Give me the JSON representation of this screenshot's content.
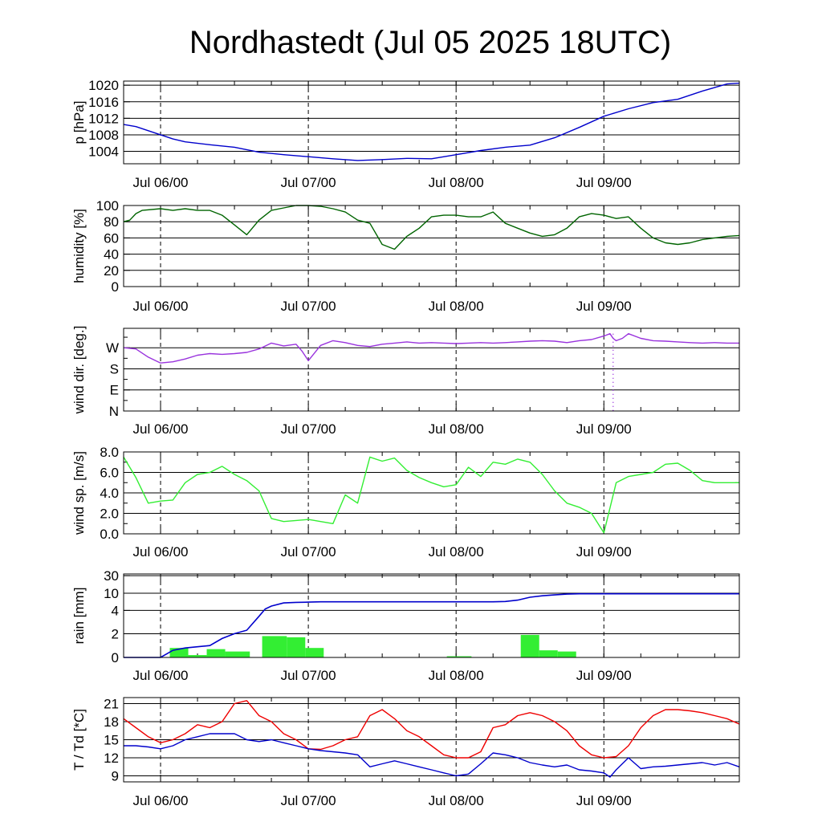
{
  "title": "Nordhastedt (Jul 05 2025 18UTC)",
  "colors": {
    "pressure": "#0000cc",
    "humidity": "#006400",
    "wind_dir": "#9933dd",
    "wind_speed": "#33ee33",
    "rain_bar": "#33ee33",
    "rain_cum": "#0000cc",
    "temperature": "#ee0000",
    "dewpoint": "#0000cc"
  },
  "chart_data": [
    {
      "type": "line",
      "id": "pressure",
      "ylabel": "p [hPa]",
      "x_unit": "hours since Jul 05 18UTC",
      "xlim": [
        0,
        100
      ],
      "x_ticks": [
        "Jul 06/00",
        "Jul 07/00",
        "Jul 08/00",
        "Jul 09/00"
      ],
      "ylim": [
        1001,
        1021
      ],
      "y_ticks": [
        1004,
        1008,
        1012,
        1016,
        1020
      ],
      "series": [
        {
          "x": [
            0,
            2,
            4,
            6,
            8,
            10,
            14,
            18,
            22,
            26,
            30,
            34,
            38,
            42,
            46,
            50,
            54,
            58,
            62,
            66,
            70,
            74,
            78,
            82,
            86,
            90,
            94,
            98,
            100
          ],
          "y": [
            1010.5,
            1010,
            1009,
            1008,
            1007,
            1006.3,
            1005.6,
            1005,
            1003.8,
            1003.2,
            1002.7,
            1002.2,
            1001.8,
            1002,
            1002.3,
            1002.2,
            1003.2,
            1004.2,
            1005,
            1005.5,
            1007.3,
            1009.8,
            1012.5,
            1014.3,
            1015.8,
            1016.6,
            1018.6,
            1020.3,
            1020.5
          ]
        }
      ]
    },
    {
      "type": "line",
      "id": "humidity",
      "ylabel": "humidity [%]",
      "x_unit": "hours since Jul 05 18UTC",
      "xlim": [
        0,
        100
      ],
      "x_ticks": [
        "Jul 06/00",
        "Jul 07/00",
        "Jul 08/00",
        "Jul 09/00"
      ],
      "ylim": [
        0,
        100
      ],
      "y_ticks": [
        0,
        20,
        40,
        60,
        80,
        100
      ],
      "series": [
        {
          "x": [
            0,
            1,
            2,
            3,
            6,
            8,
            10,
            12,
            14,
            16,
            18,
            20,
            22,
            24,
            26,
            28,
            30,
            32,
            34,
            36,
            38,
            40,
            42,
            44,
            46,
            48,
            50,
            52,
            54,
            56,
            58,
            60,
            62,
            64,
            66,
            68,
            70,
            72,
            74,
            76,
            78,
            80,
            82,
            84,
            86,
            88,
            90,
            92,
            94,
            96,
            98,
            100
          ],
          "y": [
            80,
            82,
            90,
            94,
            96,
            94,
            96,
            94,
            94,
            88,
            76,
            64,
            82,
            94,
            97,
            100,
            100,
            99,
            96,
            92,
            82,
            78,
            52,
            46,
            62,
            72,
            86,
            88,
            88,
            86,
            86,
            92,
            78,
            72,
            66,
            62,
            64,
            72,
            86,
            90,
            88,
            84,
            86,
            72,
            60,
            54,
            52,
            54,
            58,
            60,
            62,
            63
          ]
        }
      ]
    },
    {
      "type": "line",
      "id": "wind_dir",
      "ylabel": "wind dir. [deg.]",
      "x_unit": "hours since Jul 05 18UTC",
      "xlim": [
        0,
        100
      ],
      "x_ticks": [
        "Jul 06/00",
        "Jul 07/00",
        "Jul 08/00",
        "Jul 09/00"
      ],
      "ylim": [
        0,
        360
      ],
      "y_ticks": [
        "N",
        "E",
        "S",
        "W"
      ],
      "series": [
        {
          "x": [
            0,
            2,
            4,
            6,
            8,
            10,
            12,
            14,
            16,
            18,
            20,
            22,
            24,
            26,
            28,
            29,
            30,
            32,
            34,
            36,
            38,
            40,
            42,
            44,
            46,
            48,
            50,
            52,
            54,
            56,
            58,
            60,
            62,
            64,
            66,
            68,
            70,
            72,
            74,
            76,
            78,
            79,
            79.5,
            80,
            81,
            82,
            84,
            86,
            88,
            90,
            92,
            94,
            96,
            98,
            100
          ],
          "y": [
            270,
            265,
            230,
            205,
            210,
            222,
            238,
            245,
            242,
            245,
            250,
            265,
            290,
            278,
            285,
            255,
            215,
            280,
            300,
            292,
            280,
            275,
            285,
            290,
            295,
            290,
            292,
            290,
            288,
            290,
            292,
            290,
            292,
            295,
            298,
            300,
            298,
            292,
            300,
            305,
            320,
            330,
            310,
            300,
            310,
            330,
            310,
            300,
            298,
            295,
            292,
            290,
            292,
            290,
            290
          ]
        }
      ]
    },
    {
      "type": "line",
      "id": "wind_speed",
      "ylabel": "wind sp. [m/s]",
      "x_unit": "hours since Jul 05 18UTC",
      "xlim": [
        0,
        100
      ],
      "x_ticks": [
        "Jul 06/00",
        "Jul 07/00",
        "Jul 08/00",
        "Jul 09/00"
      ],
      "ylim": [
        0,
        8
      ],
      "y_ticks": [
        "0.0",
        "2.0",
        "4.0",
        "6.0",
        "8.0"
      ],
      "series": [
        {
          "x": [
            0,
            2,
            4,
            6,
            8,
            10,
            12,
            14,
            16,
            18,
            20,
            22,
            24,
            26,
            28,
            30,
            32,
            34,
            36,
            38,
            40,
            42,
            44,
            46,
            48,
            50,
            52,
            54,
            56,
            58,
            60,
            62,
            64,
            66,
            68,
            70,
            72,
            74,
            76,
            78,
            80,
            82,
            84,
            86,
            88,
            90,
            92,
            94,
            96,
            98,
            100
          ],
          "y": [
            7.5,
            5.5,
            3.0,
            3.2,
            3.3,
            5.0,
            5.8,
            6.0,
            6.6,
            5.8,
            5.2,
            4.2,
            1.5,
            1.2,
            1.3,
            1.4,
            1.2,
            1.0,
            3.8,
            3.0,
            7.5,
            7.1,
            7.4,
            6.2,
            5.5,
            5.0,
            4.6,
            4.8,
            6.5,
            5.6,
            7.0,
            6.8,
            7.3,
            7.0,
            5.8,
            4.2,
            3.0,
            2.6,
            2.0,
            0.1,
            5.0,
            5.6,
            5.8,
            6.0,
            6.8,
            6.9,
            6.2,
            5.2,
            5.0,
            5.0,
            5.0
          ]
        }
      ]
    },
    {
      "type": "bar",
      "id": "rain",
      "ylabel": "rain [mm]",
      "x_unit": "hours since Jul 05 18UTC",
      "xlim": [
        0,
        100
      ],
      "x_ticks": [
        "Jul 06/00",
        "Jul 07/00",
        "Jul 08/00",
        "Jul 09/00"
      ],
      "y_ticks": [
        "0",
        "2",
        "4",
        "10",
        "30"
      ],
      "y_tick_values": [
        0,
        2,
        4,
        10,
        30
      ],
      "bars": [
        {
          "x0": 7.5,
          "x1": 10.5,
          "value": 0.8
        },
        {
          "x0": 10.5,
          "x1": 13.5,
          "value": 0.2
        },
        {
          "x0": 13.5,
          "x1": 16.5,
          "value": 0.7
        },
        {
          "x0": 16.5,
          "x1": 20.5,
          "value": 0.5
        },
        {
          "x0": 22.5,
          "x1": 26.5,
          "value": 1.8
        },
        {
          "x0": 26.5,
          "x1": 29.5,
          "value": 1.7
        },
        {
          "x0": 29.5,
          "x1": 32.5,
          "value": 0.8
        },
        {
          "x0": 52.5,
          "x1": 56.5,
          "value": 0.1
        },
        {
          "x0": 64.5,
          "x1": 67.5,
          "value": 1.9
        },
        {
          "x0": 67.5,
          "x1": 70.5,
          "value": 0.6
        },
        {
          "x0": 70.5,
          "x1": 73.5,
          "value": 0.5
        }
      ],
      "cumulative": {
        "x": [
          0,
          6,
          7,
          8,
          10,
          12,
          14,
          16,
          18,
          20,
          22,
          23,
          24,
          26,
          28,
          30,
          32,
          40,
          50,
          60,
          62,
          64,
          66,
          68,
          70,
          72,
          74,
          80,
          90,
          100
        ],
        "y": [
          0,
          0,
          0.3,
          0.6,
          0.8,
          0.9,
          1.0,
          1.6,
          2.0,
          2.3,
          3.5,
          4.5,
          5.5,
          6.6,
          6.8,
          6.9,
          7.0,
          7.0,
          7.0,
          7.0,
          7.1,
          7.6,
          8.6,
          9.1,
          9.4,
          9.7,
          9.8,
          9.8,
          9.8,
          9.8
        ]
      }
    },
    {
      "type": "line",
      "id": "temperature",
      "ylabel": "T / Td [*C]",
      "x_unit": "hours since Jul 05 18UTC",
      "xlim": [
        0,
        100
      ],
      "x_ticks": [
        "Jul 06/00",
        "Jul 07/00",
        "Jul 08/00",
        "Jul 09/00"
      ],
      "ylim": [
        8,
        22
      ],
      "y_ticks": [
        9,
        12,
        15,
        18,
        21
      ],
      "series": [
        {
          "id": "T",
          "x": [
            0,
            2,
            4,
            6,
            8,
            10,
            12,
            14,
            16,
            18,
            20,
            22,
            24,
            26,
            28,
            30,
            32,
            34,
            36,
            38,
            40,
            42,
            44,
            46,
            48,
            50,
            52,
            54,
            56,
            58,
            60,
            62,
            64,
            66,
            68,
            70,
            72,
            74,
            76,
            78,
            80,
            82,
            84,
            86,
            88,
            90,
            92,
            94,
            96,
            98,
            100
          ],
          "y": [
            18.5,
            17,
            15.5,
            14.5,
            15,
            16,
            17.5,
            17,
            18,
            21,
            21.5,
            19,
            18,
            16,
            15,
            13.5,
            13.4,
            14,
            15,
            15.5,
            19,
            20,
            18.5,
            16.5,
            15.5,
            14,
            12.5,
            12,
            12,
            13,
            17,
            17.5,
            19,
            19.5,
            19,
            18,
            16.5,
            14,
            12.5,
            12,
            12.2,
            14,
            17,
            19,
            20,
            20,
            19.8,
            19.5,
            19,
            18.5,
            17.6
          ]
        },
        {
          "id": "Td",
          "x": [
            0,
            2,
            4,
            6,
            8,
            10,
            12,
            14,
            16,
            18,
            20,
            22,
            24,
            26,
            28,
            30,
            32,
            34,
            36,
            38,
            40,
            42,
            44,
            46,
            48,
            50,
            52,
            54,
            56,
            58,
            60,
            62,
            64,
            66,
            68,
            70,
            72,
            74,
            76,
            78,
            79,
            80,
            82,
            84,
            86,
            88,
            90,
            92,
            94,
            96,
            98,
            100
          ],
          "y": [
            14,
            14,
            13.8,
            13.5,
            14,
            15,
            15.5,
            16,
            16,
            16,
            15,
            14.7,
            15,
            14.5,
            14,
            13.5,
            13.2,
            13,
            12.8,
            12.5,
            10.5,
            11,
            11.5,
            11,
            10.5,
            10,
            9.5,
            9,
            9.3,
            11,
            12.8,
            12.5,
            12,
            11.2,
            10.8,
            10.5,
            10.8,
            10,
            9.8,
            9.5,
            8.8,
            10,
            12,
            10.2,
            10.5,
            10.6,
            10.8,
            11,
            11.2,
            10.8,
            11.2,
            10.5
          ]
        }
      ]
    }
  ]
}
